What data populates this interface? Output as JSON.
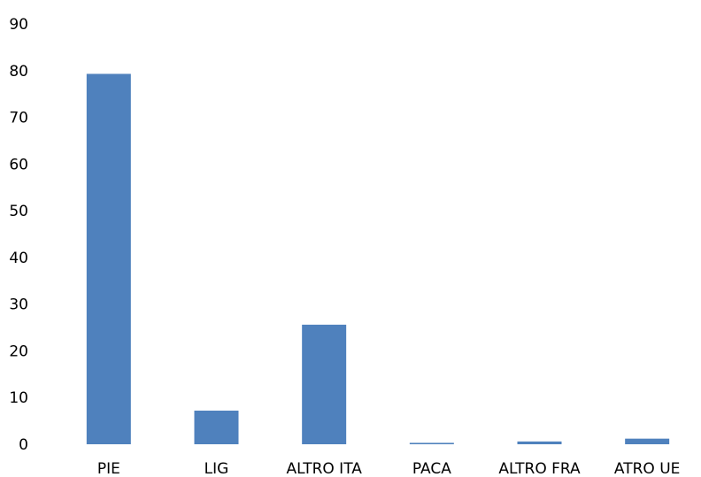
{
  "chart_data": {
    "type": "bar",
    "categories": [
      "PIE",
      "LIG",
      "ALTRO ITA",
      "PACA",
      "ALTRO FRA",
      "ATRO UE"
    ],
    "values": [
      79.3,
      7.2,
      25.6,
      0.3,
      0.6,
      1.2
    ],
    "ylim": [
      0,
      90
    ],
    "yticks": [
      0,
      10,
      20,
      30,
      40,
      50,
      60,
      70,
      80,
      90
    ],
    "ytick_labels": [
      "0",
      "10",
      "20",
      "30",
      "40",
      "50",
      "60",
      "70",
      "80",
      "90"
    ],
    "grid": false,
    "legend": "none",
    "bar_color": "#4f81bd"
  }
}
